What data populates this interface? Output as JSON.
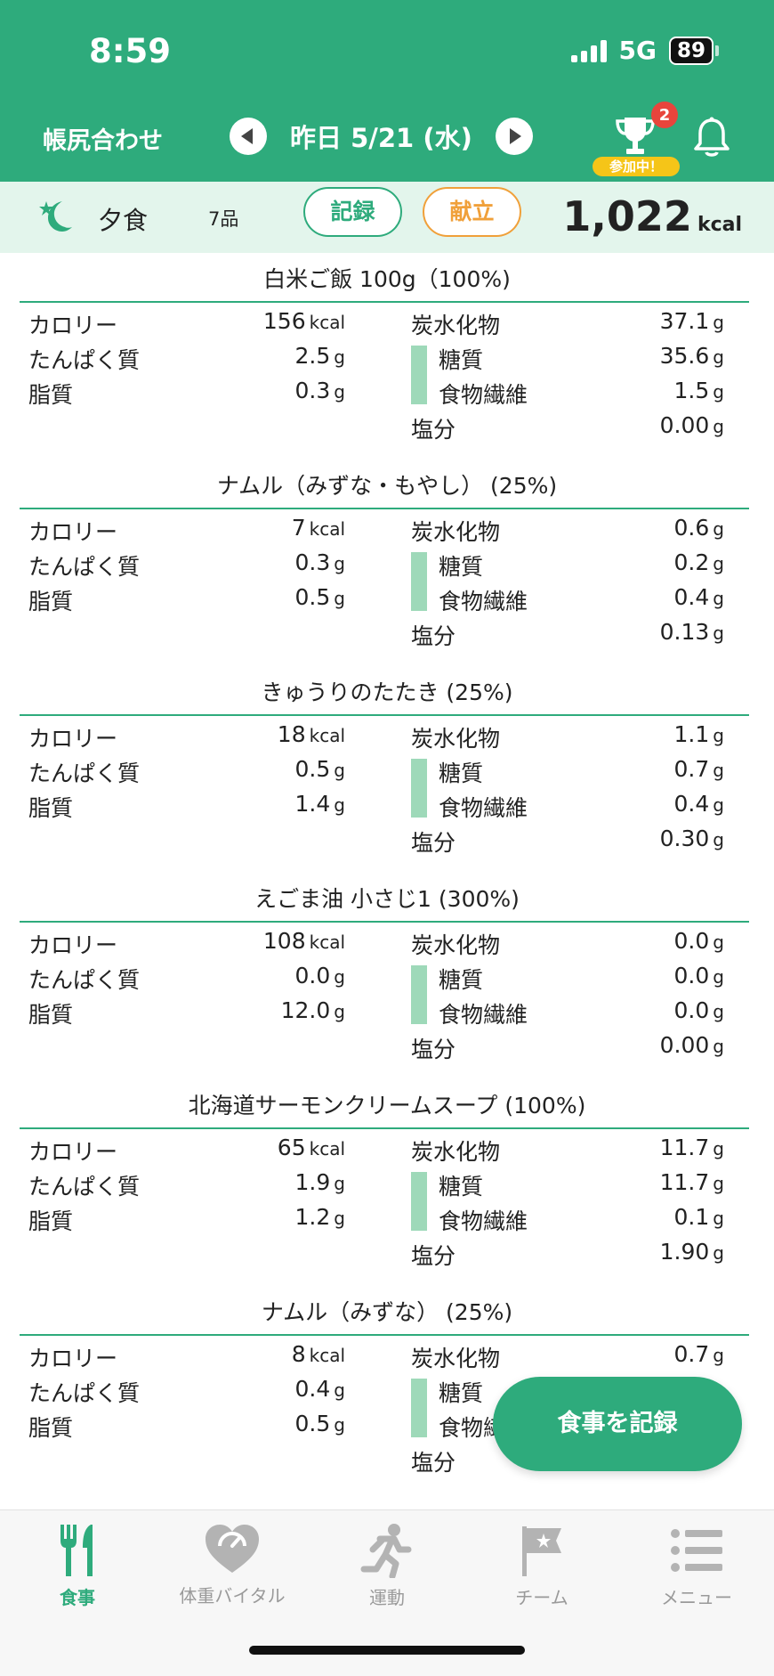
{
  "status_bar": {
    "time": "8:59",
    "network": "5G",
    "battery": "89"
  },
  "header": {
    "title": "帳尻合わせ",
    "date": "昨日 5/21 (水)",
    "trophy_badge": "2",
    "trophy_label": "参加中！"
  },
  "meal": {
    "name": "夕食",
    "count": "7品",
    "record_label": "記録",
    "plan_label": "献立",
    "total_kcal": "1,022",
    "kcal_unit": "kcal"
  },
  "labels": {
    "calorie": "カロリー",
    "protein": "たんぱく質",
    "fat": "脂質",
    "carb": "炭水化物",
    "sugar": "糖質",
    "fiber": "食物繊維",
    "salt": "塩分",
    "kcal": "kcal",
    "g": "g"
  },
  "foods": [
    {
      "title": "白米ご飯 100g（100%)",
      "calorie": "156",
      "protein": "2.5",
      "fat": "0.3",
      "carb": "37.1",
      "sugar": "35.6",
      "fiber": "1.5",
      "salt": "0.00"
    },
    {
      "title": "ナムル（みずな・もやし） (25%)",
      "calorie": "7",
      "protein": "0.3",
      "fat": "0.5",
      "carb": "0.6",
      "sugar": "0.2",
      "fiber": "0.4",
      "salt": "0.13"
    },
    {
      "title": "きゅうりのたたき (25%)",
      "calorie": "18",
      "protein": "0.5",
      "fat": "1.4",
      "carb": "1.1",
      "sugar": "0.7",
      "fiber": "0.4",
      "salt": "0.30"
    },
    {
      "title": "えごま油 小さじ1 (300%)",
      "calorie": "108",
      "protein": "0.0",
      "fat": "12.0",
      "carb": "0.0",
      "sugar": "0.0",
      "fiber": "0.0",
      "salt": "0.00"
    },
    {
      "title": "北海道サーモンクリームスープ (100%)",
      "calorie": "65",
      "protein": "1.9",
      "fat": "1.2",
      "carb": "11.7",
      "sugar": "11.7",
      "fiber": "0.1",
      "salt": "1.90"
    },
    {
      "title": "ナムル（みずな） (25%)",
      "calorie": "8",
      "protein": "0.4",
      "fat": "0.5",
      "carb": "0.7",
      "sugar": "",
      "fiber": "",
      "salt": ""
    }
  ],
  "fab_label": "食事を記録",
  "tabs": [
    {
      "label": "食事"
    },
    {
      "label": "体重バイタル"
    },
    {
      "label": "運動"
    },
    {
      "label": "チーム"
    },
    {
      "label": "メニュー"
    }
  ],
  "colors": {
    "brand": "#2eab7c",
    "accent_orange": "#f0a03a",
    "badge_red": "#e8453c",
    "pill_yellow": "#f5c518"
  }
}
